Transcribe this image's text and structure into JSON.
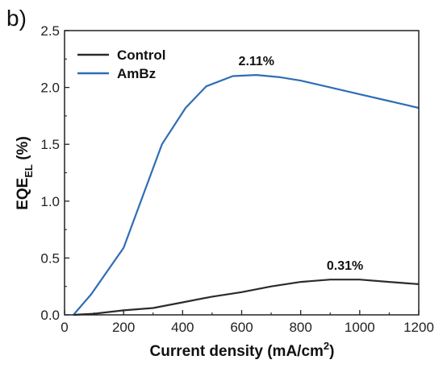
{
  "chart_data": {
    "type": "line",
    "panel_label": "b)",
    "xlabel": "Current density (mA/cm",
    "xlabel_sup": "2",
    "xlabel_end": ")",
    "ylabel_main": "EQE",
    "ylabel_sub": "EL",
    "ylabel_unit": " (%)",
    "xlim": [
      0,
      1200
    ],
    "ylim": [
      0,
      2.5
    ],
    "xticks": [
      "0",
      "200",
      "400",
      "600",
      "800",
      "1000",
      "1200"
    ],
    "yticks": [
      "0.0",
      "0.5",
      "1.0",
      "1.5",
      "2.0",
      "2.5"
    ],
    "legend_position": "top-left",
    "grid": false,
    "series": [
      {
        "name": "Control",
        "color": "#2b2b2b",
        "x": [
          30,
          100,
          200,
          300,
          400,
          500,
          600,
          700,
          800,
          900,
          1000,
          1100,
          1200
        ],
        "y": [
          0.0,
          0.01,
          0.04,
          0.06,
          0.11,
          0.16,
          0.2,
          0.25,
          0.29,
          0.31,
          0.31,
          0.29,
          0.27
        ]
      },
      {
        "name": "AmBz",
        "color": "#2f6db5",
        "x": [
          30,
          90,
          200,
          330,
          410,
          480,
          570,
          650,
          730,
          800,
          900,
          1000,
          1100,
          1200
        ],
        "y": [
          0.0,
          0.18,
          0.59,
          1.5,
          1.82,
          2.01,
          2.1,
          2.11,
          2.09,
          2.06,
          2.0,
          1.94,
          1.88,
          1.82
        ]
      }
    ],
    "annotations": [
      {
        "text": "2.11%",
        "x": 650,
        "y": 2.11
      },
      {
        "text": "0.31%",
        "x": 950,
        "y": 0.31
      }
    ]
  }
}
